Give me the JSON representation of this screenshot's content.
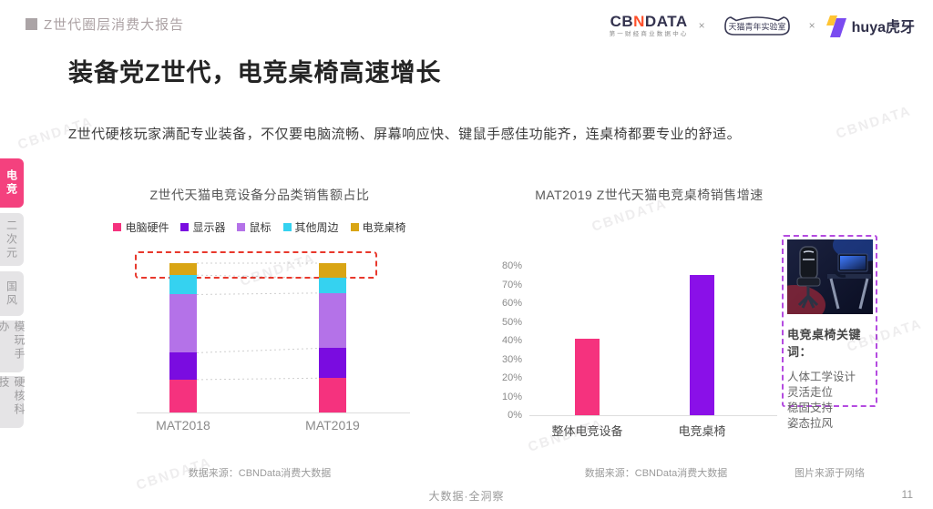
{
  "header": {
    "report_tag": "Z世代圈层消费大报告",
    "logos": {
      "cbndata": {
        "cb": "CB",
        "n": "N",
        "data": "DATA",
        "subtitle": "第一财经商业数据中心"
      },
      "separator": "×",
      "tmall_lab": "天猫青年实验室",
      "huya": {
        "latin": "huya",
        "cn": "虎牙"
      }
    }
  },
  "sidebar": {
    "tabs": [
      {
        "label": "电竞",
        "active": true
      },
      {
        "label": "二次元",
        "active": false
      },
      {
        "label": "国风",
        "active": false
      },
      {
        "label": "模玩手办",
        "active": false
      },
      {
        "label": "硬核科技",
        "active": false
      }
    ]
  },
  "main": {
    "title": "装备党Z世代，电竞桌椅高速增长",
    "description": "Z世代硬核玩家满配专业装备，不仅要电脑流畅、屏幕响应快、键鼠手感佳功能齐，连桌椅都要专业的舒适。"
  },
  "chart_data": [
    {
      "type": "bar",
      "subtype": "stacked-100",
      "title": "Z世代天猫电竞设备分品类销售额占比",
      "categories": [
        "MAT2018",
        "MAT2019"
      ],
      "series": [
        {
          "name": "电脑硬件",
          "color": "#F5327E",
          "values": [
            22,
            23
          ]
        },
        {
          "name": "显示器",
          "color": "#7A0CE0",
          "values": [
            18,
            20
          ]
        },
        {
          "name": "鼠标",
          "color": "#B472E8",
          "values": [
            39,
            37
          ]
        },
        {
          "name": "其他周边",
          "color": "#35D2F0",
          "values": [
            13,
            10
          ]
        },
        {
          "name": "电竞桌椅",
          "color": "#D9A514",
          "values": [
            8,
            10
          ]
        }
      ],
      "unit": "%",
      "ylim": [
        0,
        100
      ],
      "legend_position": "top",
      "grid": false,
      "highlight": {
        "segment": "电竞桌椅",
        "style": "red dashed box around top segments of both bars",
        "color": "#E8382C"
      },
      "source": "数据来源：CBNData消费大数据"
    },
    {
      "type": "bar",
      "title": "MAT2019 Z世代天猫电竞桌椅销售增速",
      "categories": [
        "整体电竞设备",
        "电竞桌椅"
      ],
      "values": [
        41,
        75
      ],
      "colors": [
        "#F5327E",
        "#8A10E8"
      ],
      "unit": "%",
      "ylim": [
        0,
        80
      ],
      "ytick_step": 10,
      "grid": false,
      "source": "数据来源：CBNData消费大数据"
    }
  ],
  "side_panel": {
    "photo": "gaming-chair-and-desk-photo",
    "keywords_title": "电竞桌椅关键词：",
    "keywords": [
      "人体工学设计",
      "灵活走位",
      "稳固支持",
      "姿态拉风"
    ],
    "caption": "图片来源于网络"
  },
  "footer": {
    "slogan": "大数据·全洞察",
    "page": "11"
  },
  "watermark": {
    "text": "CBNDATA"
  },
  "colors": {
    "accent_pink": "#F4417E",
    "violet": "#7A0CE0",
    "light_purple": "#B472E8",
    "cyan": "#35D2F0",
    "gold": "#D9A514",
    "highlight_red": "#E8382C",
    "panel_border_purple": "#B44BE0"
  }
}
